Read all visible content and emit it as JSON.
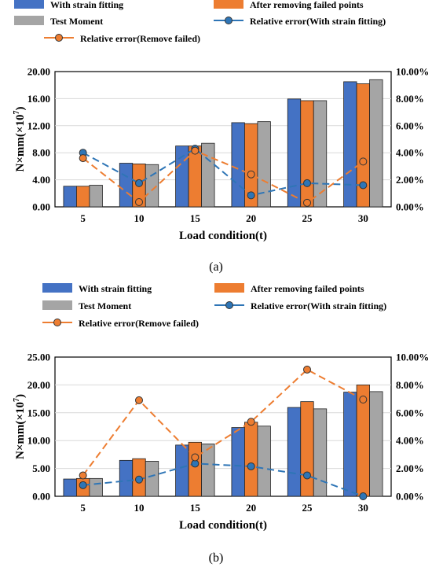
{
  "chart_data": [
    {
      "type": "bar",
      "panel_label": "(a)",
      "categories": [
        "5",
        "10",
        "15",
        "20",
        "25",
        "30"
      ],
      "xlabel": "Load condition(t)",
      "ylabel": "N×mm(×10",
      "ylabel_sup": "7",
      "ylabel_close": ")",
      "ylim": [
        0,
        20
      ],
      "y_ticks": [
        "0.00",
        "4.00",
        "8.00",
        "12.00",
        "16.00",
        "20.00"
      ],
      "y2lim": [
        0,
        10
      ],
      "y2_ticks": [
        "0.00%",
        "2.00%",
        "4.00%",
        "6.00%",
        "8.00%",
        "10.00%"
      ],
      "grid": true,
      "series": [
        {
          "name": "With strain fitting",
          "type": "bar",
          "color": "#4472C4",
          "values": [
            3.05,
            6.45,
            9.0,
            12.45,
            15.95,
            18.5
          ]
        },
        {
          "name": "After removing failed points",
          "type": "bar",
          "color": "#ED7D31",
          "values": [
            3.05,
            6.35,
            9.0,
            12.3,
            15.7,
            18.2
          ]
        },
        {
          "name": "Test Moment",
          "type": "bar",
          "color": "#A5A5A5",
          "values": [
            3.2,
            6.25,
            9.4,
            12.6,
            15.7,
            18.8
          ]
        },
        {
          "name": "Relative error(With strain fitting)",
          "type": "line",
          "axis": "right",
          "color": "#2E75B6",
          "values": [
            4.0,
            1.75,
            4.3,
            0.85,
            1.75,
            1.6
          ]
        },
        {
          "name": "Relative error(Remove failed)",
          "type": "line",
          "axis": "right",
          "color": "#ED7D31",
          "values": [
            3.6,
            0.35,
            4.15,
            2.4,
            0.3,
            3.35
          ]
        }
      ]
    },
    {
      "type": "bar",
      "panel_label": "(b)",
      "categories": [
        "5",
        "10",
        "15",
        "20",
        "25",
        "30"
      ],
      "xlabel": "Load condition(t)",
      "ylabel": "N×mm(×10",
      "ylabel_sup": "7",
      "ylabel_close": ")",
      "ylim": [
        0,
        25
      ],
      "y_ticks": [
        "0.00",
        "5.00",
        "10.00",
        "15.00",
        "20.00",
        "25.00"
      ],
      "y2lim": [
        0,
        10
      ],
      "y2_ticks": [
        "0.00%",
        "2.00%",
        "4.00%",
        "6.00%",
        "8.00%",
        "10.00%"
      ],
      "grid": true,
      "series": [
        {
          "name": "With strain fitting",
          "type": "bar",
          "color": "#4472C4",
          "values": [
            3.1,
            6.45,
            9.2,
            12.35,
            15.95,
            18.7
          ]
        },
        {
          "name": "After removing failed points",
          "type": "bar",
          "color": "#ED7D31",
          "values": [
            3.2,
            6.75,
            9.7,
            13.3,
            17.0,
            20.0
          ]
        },
        {
          "name": "Test Moment",
          "type": "bar",
          "color": "#A5A5A5",
          "values": [
            3.2,
            6.3,
            9.4,
            12.6,
            15.7,
            18.8
          ]
        },
        {
          "name": "Relative error(With strain fitting)",
          "type": "line",
          "axis": "right",
          "color": "#2E75B6",
          "values": [
            0.8,
            1.2,
            2.35,
            2.15,
            1.5,
            0.0
          ]
        },
        {
          "name": "Relative error(Remove failed)",
          "type": "line",
          "axis": "right",
          "color": "#ED7D31",
          "values": [
            1.5,
            6.9,
            2.8,
            5.35,
            9.1,
            6.95
          ]
        }
      ]
    }
  ]
}
